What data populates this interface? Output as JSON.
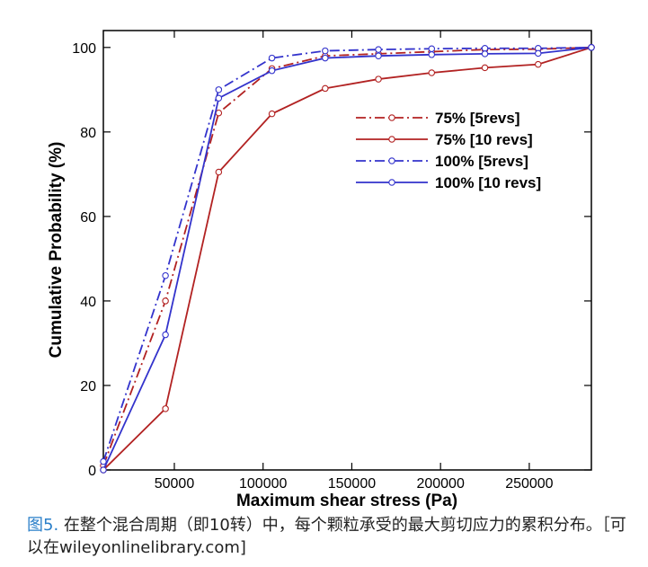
{
  "chart_data": {
    "type": "line",
    "xlabel": "Maximum shear stress (Pa)",
    "ylabel": "Cumulative Probability (%)",
    "xlim": [
      10000,
      285000
    ],
    "ylim": [
      0,
      104
    ],
    "x_ticks": [
      50000,
      100000,
      150000,
      200000,
      250000
    ],
    "y_ticks": [
      0,
      20,
      40,
      60,
      80,
      100
    ],
    "grid": false,
    "legend_position": "right-upper",
    "series": [
      {
        "name": "75% [5revs]",
        "color": "#b22222",
        "dash": "dashdot",
        "marker": "circle",
        "x": [
          10000,
          45000,
          75000,
          105000,
          135000,
          165000,
          195000,
          225000,
          255000,
          285000
        ],
        "y": [
          1,
          40,
          84.5,
          95,
          98,
          98.5,
          99,
          99.5,
          99.6,
          100
        ]
      },
      {
        "name": "75% [10 revs]",
        "color": "#b22222",
        "dash": "solid",
        "marker": "circle",
        "x": [
          10000,
          45000,
          75000,
          105000,
          135000,
          165000,
          195000,
          225000,
          255000,
          285000
        ],
        "y": [
          0,
          14.5,
          70.5,
          84.3,
          90.3,
          92.5,
          94,
          95.2,
          96,
          100
        ]
      },
      {
        "name": "100% [5revs]",
        "color": "#3333cc",
        "dash": "dashdot",
        "marker": "circle",
        "x": [
          10000,
          45000,
          75000,
          105000,
          135000,
          165000,
          195000,
          225000,
          255000,
          285000
        ],
        "y": [
          2,
          46,
          90,
          97.5,
          99.2,
          99.5,
          99.7,
          99.8,
          99.8,
          100
        ]
      },
      {
        "name": "100% [10 revs]",
        "color": "#3333cc",
        "dash": "solid",
        "marker": "circle",
        "x": [
          10000,
          45000,
          75000,
          105000,
          135000,
          165000,
          195000,
          225000,
          255000,
          285000
        ],
        "y": [
          0,
          32,
          88,
          94.5,
          97.5,
          98,
          98.3,
          98.5,
          98.6,
          100
        ]
      }
    ]
  },
  "caption": {
    "figure_label": "图5.",
    "text": " 在整个混合周期（即10转）中，每个颗粒承受的最大剪切应力的累积分布。［可以在wileyonlinelibrary.com]"
  }
}
